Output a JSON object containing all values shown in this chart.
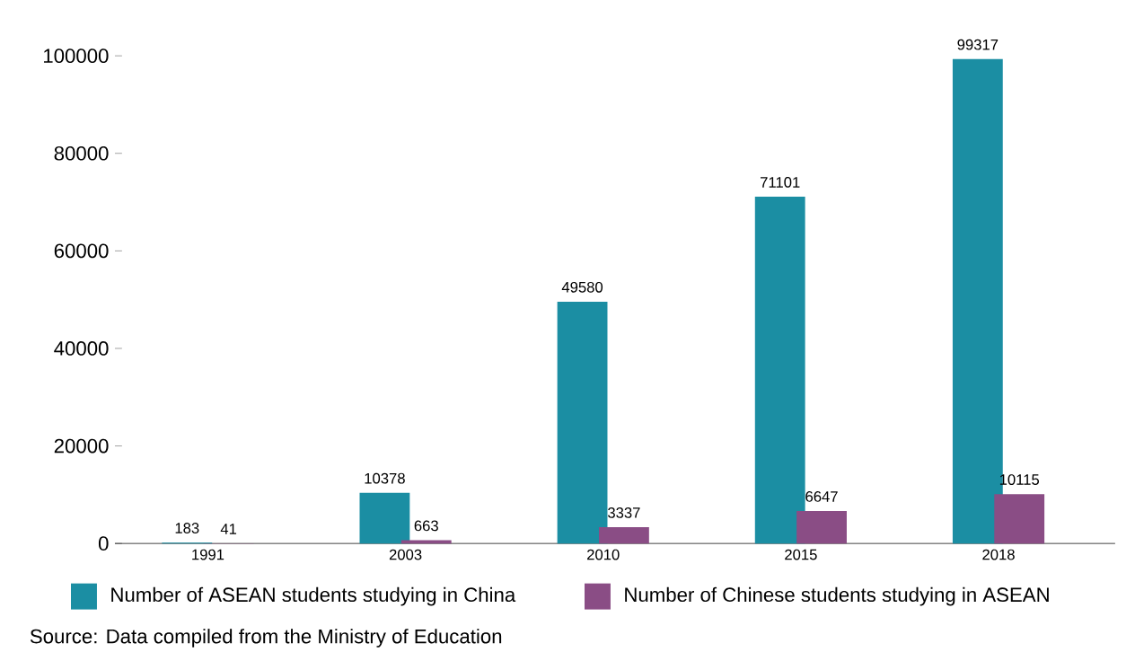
{
  "chart_data": {
    "type": "bar",
    "categories": [
      "1991",
      "2003",
      "2010",
      "2015",
      "2018"
    ],
    "series": [
      {
        "name": "Number of ASEAN students studying in China",
        "color": "#1b8ea3",
        "values": [
          183,
          10378,
          49580,
          71101,
          99317
        ]
      },
      {
        "name": "Number of Chinese students studying in ASEAN",
        "color": "#8a4d85",
        "values": [
          41,
          663,
          3337,
          6647,
          10115
        ]
      }
    ],
    "ylim": [
      0,
      100000
    ],
    "yticks": [
      0,
      20000,
      40000,
      60000,
      80000,
      100000
    ],
    "data_labels": true,
    "legend": "bottom",
    "grid": false,
    "annotations": [
      "Source: Data compiled from the Ministry of Education"
    ]
  }
}
